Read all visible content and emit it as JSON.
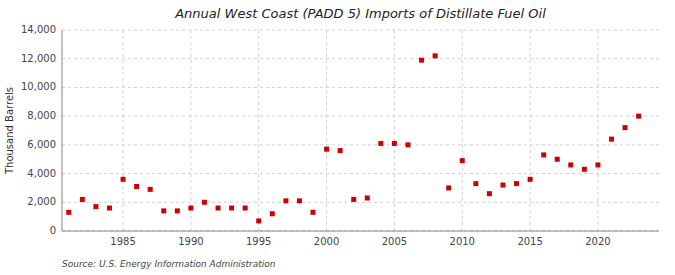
{
  "chart_data": {
    "type": "scatter",
    "title": "Annual West Coast (PADD 5) Imports of Distillate Fuel Oil",
    "ylabel": "Thousand Barrels",
    "source": "Source: U.S. Energy Information Administration",
    "color": "#CC0000",
    "marker": "square",
    "grid": true,
    "x": [
      1981,
      1982,
      1983,
      1984,
      1985,
      1986,
      1987,
      1988,
      1989,
      1990,
      1991,
      1992,
      1993,
      1994,
      1995,
      1996,
      1997,
      1998,
      1999,
      2000,
      2001,
      2002,
      2003,
      2004,
      2005,
      2006,
      2007,
      2008,
      2009,
      2010,
      2011,
      2012,
      2013,
      2014,
      2015,
      2016,
      2017,
      2018,
      2019,
      2020,
      2021,
      2022,
      2023
    ],
    "values": [
      1300,
      2200,
      1700,
      1600,
      3600,
      3100,
      2900,
      1400,
      1400,
      1600,
      2000,
      1600,
      1600,
      1600,
      700,
      1200,
      2100,
      2100,
      1300,
      5700,
      5600,
      2200,
      2300,
      6100,
      6100,
      6000,
      11900,
      12200,
      3000,
      4900,
      3300,
      2600,
      3200,
      3300,
      3600,
      5300,
      5000,
      4600,
      4300,
      4600,
      6400,
      7200,
      8000
    ],
    "xlim": [
      1980.5,
      2024.5
    ],
    "ylim": [
      0,
      14000
    ],
    "xticks": [
      1985,
      1990,
      1995,
      2000,
      2005,
      2010,
      2015,
      2020
    ],
    "yticks": [
      0,
      {
        "value": 2000,
        "label": "2,000"
      },
      {
        "value": 4000,
        "label": "4,000"
      },
      {
        "value": 6000,
        "label": "6,000"
      },
      {
        "value": 8000,
        "label": "8,000"
      },
      {
        "value": 10000,
        "label": "10,000"
      },
      {
        "value": 12000,
        "label": "12,000"
      },
      {
        "value": 14000,
        "label": "14,000"
      }
    ]
  }
}
